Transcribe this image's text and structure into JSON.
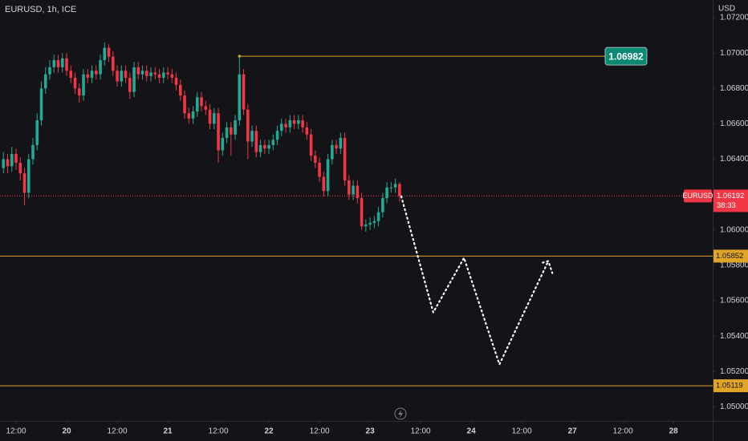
{
  "chart_data": {
    "type": "candlestick",
    "title": "EURUSD, 1h, ICE",
    "currency": "USD",
    "symbol": "EURUSD",
    "countdown": "38:33",
    "up_color": "#22ab94",
    "down_color": "#f23645",
    "level_color": "#e0a526",
    "badge_color": "#0b8a73",
    "grid": false,
    "xlim": [
      -3.81,
      165.3
    ],
    "xticks": [
      {
        "value": 0,
        "label": "12:00"
      },
      20,
      {
        "value": 24,
        "label": "12:00"
      },
      21,
      {
        "value": 48,
        "label": "12:00"
      },
      22,
      {
        "value": 72,
        "label": "12:00"
      },
      23,
      {
        "value": 96,
        "label": "12:00"
      },
      24,
      {
        "value": 120,
        "label": "12:00"
      },
      27,
      {
        "value": 144,
        "label": "12:00"
      },
      28
    ],
    "xtick_values": [
      0,
      12,
      24,
      36,
      48,
      60,
      72,
      84,
      96,
      108,
      120,
      132,
      144,
      156
    ],
    "ylim": [
      1.0492,
      1.073
    ],
    "yticks": [
      {
        "value": 1.072,
        "label": "1.07200"
      },
      {
        "value": 1.07,
        "label": "1.07000"
      },
      {
        "value": 1.068,
        "label": "1.06800"
      },
      {
        "value": 1.066,
        "label": "1.06600"
      },
      {
        "value": 1.064,
        "label": "1.06400"
      },
      {
        "value": 1.062,
        "label": "1.06200"
      },
      {
        "value": 1.06,
        "label": "1.06000"
      },
      {
        "value": 1.058,
        "label": "1.05800"
      },
      {
        "value": 1.056,
        "label": "1.05600"
      },
      {
        "value": 1.054,
        "label": "1.05400"
      },
      {
        "value": 1.052,
        "label": "1.05200"
      },
      {
        "value": 1.05,
        "label": "1.05000"
      }
    ],
    "last_price": 1.06192,
    "marked_high": {
      "value": 1.06982,
      "x": 53
    },
    "levels": [
      1.05852,
      1.05119
    ],
    "projection": {
      "x": [
        91.4,
        99,
        106.3,
        114.7,
        126.3
      ],
      "y": [
        1.0619,
        1.05534,
        1.05842,
        1.0524,
        1.05824
      ]
    },
    "x": [
      -3,
      -2,
      -1,
      0,
      1,
      2,
      3,
      4,
      5,
      6,
      7,
      8,
      9,
      10,
      11,
      12,
      13,
      14,
      15,
      16,
      17,
      18,
      19,
      20,
      21,
      22,
      23,
      24,
      25,
      26,
      27,
      28,
      29,
      30,
      31,
      32,
      33,
      34,
      35,
      36,
      37,
      38,
      39,
      40,
      41,
      42,
      43,
      44,
      45,
      46,
      47,
      48,
      49,
      50,
      51,
      52,
      53,
      54,
      55,
      56,
      57,
      58,
      59,
      60,
      61,
      62,
      63,
      64,
      65,
      66,
      67,
      68,
      69,
      70,
      71,
      72,
      73,
      74,
      75,
      76,
      77,
      78,
      79,
      80,
      81,
      82,
      83,
      84,
      85,
      86,
      87,
      88,
      89,
      90,
      91
    ],
    "ohlc": [
      [
        1.0635,
        1.0644,
        1.0632,
        1.064
      ],
      [
        1.064,
        1.0643,
        1.0632,
        1.0636
      ],
      [
        1.0636,
        1.0647,
        1.0633,
        1.0643
      ],
      [
        1.0643,
        1.0646,
        1.0634,
        1.0638
      ],
      [
        1.0638,
        1.0641,
        1.0628,
        1.0632
      ],
      [
        1.0632,
        1.0635,
        1.0614,
        1.0621
      ],
      [
        1.0621,
        1.0643,
        1.0618,
        1.064
      ],
      [
        1.064,
        1.0652,
        1.0637,
        1.0648
      ],
      [
        1.0648,
        1.0666,
        1.0645,
        1.0662
      ],
      [
        1.0662,
        1.0684,
        1.0659,
        1.068
      ],
      [
        1.068,
        1.0692,
        1.0677,
        1.0688
      ],
      [
        1.0688,
        1.0696,
        1.0685,
        1.0692
      ],
      [
        1.0692,
        1.0699,
        1.0689,
        1.0696
      ],
      [
        1.0696,
        1.0699,
        1.0689,
        1.0692
      ],
      [
        1.0692,
        1.07,
        1.0689,
        1.0697
      ],
      [
        1.0697,
        1.07,
        1.0687,
        1.069
      ],
      [
        1.069,
        1.0693,
        1.0683,
        1.0686
      ],
      [
        1.0686,
        1.0689,
        1.0677,
        1.068
      ],
      [
        1.068,
        1.0683,
        1.0672,
        1.0676
      ],
      [
        1.0676,
        1.0691,
        1.0673,
        1.0688
      ],
      [
        1.0688,
        1.0691,
        1.0683,
        1.0686
      ],
      [
        1.0686,
        1.0693,
        1.0683,
        1.069
      ],
      [
        1.069,
        1.0693,
        1.0685,
        1.0688
      ],
      [
        1.0688,
        1.0699,
        1.0685,
        1.0696
      ],
      [
        1.0696,
        1.0706,
        1.0693,
        1.0703
      ],
      [
        1.0703,
        1.0705,
        1.0695,
        1.0698
      ],
      [
        1.0698,
        1.0701,
        1.0687,
        1.069
      ],
      [
        1.069,
        1.0693,
        1.0681,
        1.0684
      ],
      [
        1.0684,
        1.0693,
        1.0681,
        1.069
      ],
      [
        1.069,
        1.0693,
        1.0683,
        1.0686
      ],
      [
        1.0686,
        1.0689,
        1.0674,
        1.0678
      ],
      [
        1.0678,
        1.0695,
        1.0675,
        1.0692
      ],
      [
        1.0692,
        1.0695,
        1.0685,
        1.0688
      ],
      [
        1.0688,
        1.0693,
        1.0685,
        1.069
      ],
      [
        1.069,
        1.0693,
        1.0684,
        1.0687
      ],
      [
        1.0687,
        1.0692,
        1.0684,
        1.0689
      ],
      [
        1.0689,
        1.0692,
        1.0685,
        1.0688
      ],
      [
        1.0688,
        1.0691,
        1.0683,
        1.0686
      ],
      [
        1.0686,
        1.0692,
        1.0683,
        1.0689
      ],
      [
        1.0689,
        1.0692,
        1.0685,
        1.0688
      ],
      [
        1.0688,
        1.0691,
        1.0683,
        1.0686
      ],
      [
        1.0686,
        1.0689,
        1.0679,
        1.0682
      ],
      [
        1.0682,
        1.0685,
        1.0673,
        1.0676
      ],
      [
        1.0676,
        1.0679,
        1.0663,
        1.0666
      ],
      [
        1.0666,
        1.0669,
        1.066,
        1.0663
      ],
      [
        1.0663,
        1.067,
        1.066,
        1.0667
      ],
      [
        1.0667,
        1.0678,
        1.0664,
        1.0675
      ],
      [
        1.0675,
        1.0678,
        1.0667,
        1.067
      ],
      [
        1.067,
        1.0673,
        1.0665,
        1.0668
      ],
      [
        1.0668,
        1.0671,
        1.0657,
        1.066
      ],
      [
        1.066,
        1.0669,
        1.0657,
        1.0666
      ],
      [
        1.0666,
        1.0669,
        1.0638,
        1.0645
      ],
      [
        1.0645,
        1.0655,
        1.0642,
        1.0652
      ],
      [
        1.0652,
        1.0661,
        1.0649,
        1.0658
      ],
      [
        1.0658,
        1.0661,
        1.0642,
        1.0654
      ],
      [
        1.0654,
        1.0665,
        1.0651,
        1.0662
      ],
      [
        1.0662,
        1.06982,
        1.0659,
        1.0688
      ],
      [
        1.0688,
        1.0691,
        1.0665,
        1.0668
      ],
      [
        1.0668,
        1.0671,
        1.064,
        1.065
      ],
      [
        1.065,
        1.0659,
        1.0647,
        1.0656
      ],
      [
        1.0656,
        1.0659,
        1.0641,
        1.0644
      ],
      [
        1.0644,
        1.0651,
        1.0641,
        1.0648
      ],
      [
        1.0648,
        1.0651,
        1.0643,
        1.0646
      ],
      [
        1.0646,
        1.0651,
        1.0643,
        1.0648
      ],
      [
        1.0648,
        1.0654,
        1.0645,
        1.0651
      ],
      [
        1.0651,
        1.0659,
        1.0648,
        1.0656
      ],
      [
        1.0656,
        1.0663,
        1.0653,
        1.066
      ],
      [
        1.066,
        1.0663,
        1.0655,
        1.0658
      ],
      [
        1.0658,
        1.0665,
        1.0655,
        1.0662
      ],
      [
        1.0662,
        1.0665,
        1.0657,
        1.066
      ],
      [
        1.066,
        1.0665,
        1.0657,
        1.0662
      ],
      [
        1.0662,
        1.0665,
        1.0655,
        1.0658
      ],
      [
        1.0658,
        1.0661,
        1.0651,
        1.0654
      ],
      [
        1.0654,
        1.0657,
        1.0639,
        1.0642
      ],
      [
        1.0642,
        1.0645,
        1.0635,
        1.0638
      ],
      [
        1.0638,
        1.0641,
        1.0627,
        1.063
      ],
      [
        1.063,
        1.0633,
        1.0619,
        1.0622
      ],
      [
        1.0622,
        1.0643,
        1.0619,
        1.064
      ],
      [
        1.064,
        1.0651,
        1.0637,
        1.0648
      ],
      [
        1.0648,
        1.0651,
        1.0643,
        1.0646
      ],
      [
        1.0646,
        1.0655,
        1.0643,
        1.0652
      ],
      [
        1.0652,
        1.0655,
        1.0625,
        1.0628
      ],
      [
        1.0628,
        1.0631,
        1.0617,
        1.062
      ],
      [
        1.062,
        1.0628,
        1.0617,
        1.0625
      ],
      [
        1.0625,
        1.0628,
        1.0615,
        1.0618
      ],
      [
        1.0618,
        1.0621,
        1.06,
        1.0602
      ],
      [
        1.0602,
        1.0606,
        1.0599,
        1.0603
      ],
      [
        1.0603,
        1.0607,
        1.06,
        1.0604
      ],
      [
        1.0604,
        1.0608,
        1.0601,
        1.0605
      ],
      [
        1.0605,
        1.0613,
        1.0602,
        1.061
      ],
      [
        1.061,
        1.0621,
        1.0607,
        1.0618
      ],
      [
        1.0618,
        1.0627,
        1.0615,
        1.0624
      ],
      [
        1.0624,
        1.0627,
        1.0621,
        1.0624
      ],
      [
        1.0624,
        1.0629,
        1.0621,
        1.0626
      ],
      [
        1.0626,
        1.0627,
        1.0616,
        1.06192
      ]
    ]
  }
}
